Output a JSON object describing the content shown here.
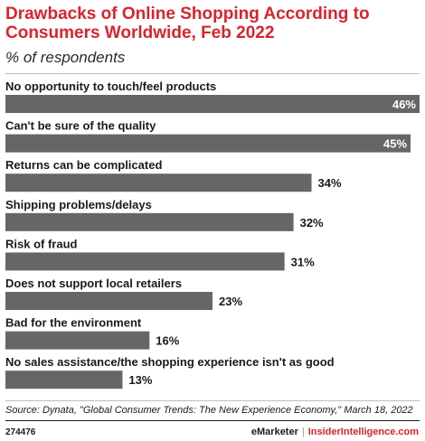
{
  "header": {
    "title": "Drawbacks of Online Shopping According to Consumers Worldwide, Feb 2022",
    "subtitle": "% of respondents"
  },
  "chart_data": {
    "type": "bar",
    "orientation": "horizontal",
    "title": "Drawbacks of Online Shopping According to Consumers Worldwide, Feb 2022",
    "subtitle": "% of respondents",
    "categories": [
      "No opportunity to touch/feel products",
      "Can't be sure of the quality",
      "Returns can be complicated",
      "Shipping problems/delays",
      "Risk of fraud",
      "Does not support local retailers",
      "Bad for the environment",
      "No sales assistance/the shopping experience isn't as good"
    ],
    "values": [
      46,
      45,
      34,
      32,
      31,
      23,
      16,
      13
    ],
    "value_labels": [
      "46%",
      "45%",
      "34%",
      "32%",
      "31%",
      "23%",
      "16%",
      "13%"
    ],
    "xlim": [
      0,
      46
    ],
    "grid": false,
    "legend": "none",
    "bar_color": "#666666"
  },
  "footer": {
    "source": "Source: Dynata, \"Global Consumer Trends: The New Experience Economy,\" March 18, 2022",
    "chart_id": "274476",
    "brand_emarketer": "eMarketer",
    "brand_separator": "|",
    "brand_insider": "InsiderIntelligence.com"
  }
}
